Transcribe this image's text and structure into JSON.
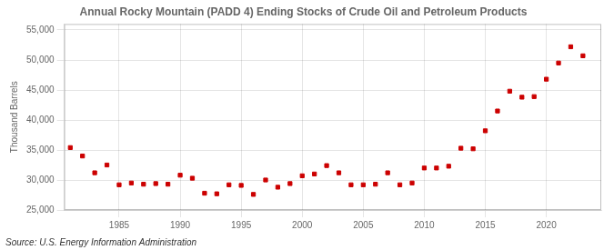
{
  "chart_data": {
    "type": "scatter",
    "title": "Annual Rocky Mountain (PADD 4) Ending Stocks of Crude Oil and Petroleum Products",
    "ylabel": "Thousand Barrels",
    "annotation": "Source: U.S. Energy Information Administration",
    "x": [
      1981,
      1982,
      1983,
      1984,
      1985,
      1986,
      1987,
      1988,
      1989,
      1990,
      1991,
      1992,
      1993,
      1994,
      1995,
      1996,
      1997,
      1998,
      1999,
      2000,
      2001,
      2002,
      2003,
      2004,
      2005,
      2006,
      2007,
      2008,
      2009,
      2010,
      2011,
      2012,
      2013,
      2014,
      2015,
      2016,
      2017,
      2018,
      2019,
      2020,
      2021,
      2022,
      2023
    ],
    "values": [
      35400,
      34000,
      31200,
      32500,
      29200,
      29500,
      29300,
      29400,
      29300,
      30800,
      30300,
      27800,
      27700,
      29200,
      29100,
      27600,
      30000,
      28800,
      29400,
      30700,
      31000,
      32400,
      31200,
      29200,
      29200,
      29300,
      31200,
      29200,
      29500,
      32000,
      32000,
      32300,
      35300,
      35200,
      38200,
      41500,
      44800,
      43800,
      43900,
      46800,
      49500,
      52200,
      50700
    ],
    "color": "#cc0000",
    "marker": "square",
    "xlim": [
      1980.5,
      2024.5
    ],
    "xticks": [
      1985,
      1990,
      1995,
      2000,
      2005,
      2010,
      2015,
      2020
    ],
    "ylim": [
      25000,
      56000
    ],
    "yticks": [
      {
        "value": 25000,
        "label": "25,000"
      },
      {
        "value": 30000,
        "label": "30,000"
      },
      {
        "value": 35000,
        "label": "35,000"
      },
      {
        "value": 40000,
        "label": "40,000"
      },
      {
        "value": 45000,
        "label": "45,000"
      },
      {
        "value": 50000,
        "label": "50,000"
      },
      {
        "value": 55000,
        "label": "55,000"
      }
    ],
    "grid": true
  }
}
